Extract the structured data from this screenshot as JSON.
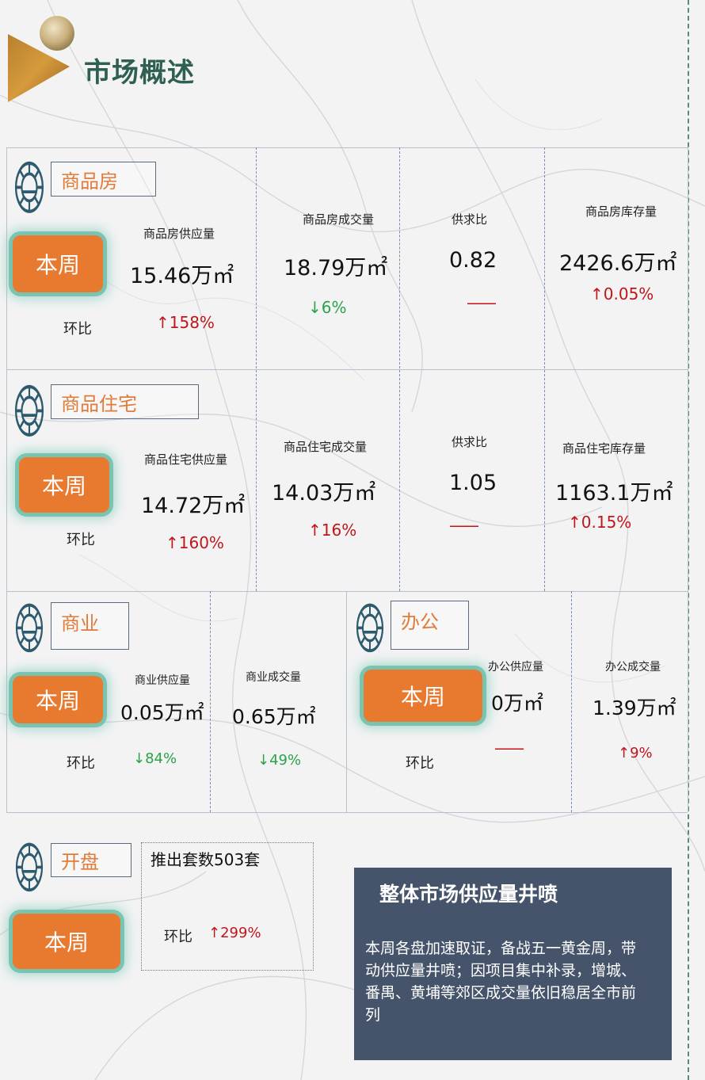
{
  "header": {
    "title": "市场概述"
  },
  "colors": {
    "accent": "#e87a30",
    "teal": "#2e5f52",
    "up": "#c0161b",
    "down": "#2aa34a",
    "summary_bg": "#45546a"
  },
  "common": {
    "this_week": "本周",
    "mom": "环比",
    "na": "——"
  },
  "commodity": {
    "name": "商品房",
    "supply_label": "商品房供应量",
    "supply_value": "15.46万㎡",
    "supply_change": "↑158%",
    "deal_label": "商品房成交量",
    "deal_value": "18.79万㎡",
    "deal_change": "↓6%",
    "ratio_label": "供求比",
    "ratio_value": "0.82",
    "stock_label": "商品房库存量",
    "stock_value": "2426.6万㎡",
    "stock_change": "↑0.05%"
  },
  "residential": {
    "name": "商品住宅",
    "supply_label": "商品住宅供应量",
    "supply_value": "14.72万㎡",
    "supply_change": "↑160%",
    "deal_label": "商品住宅成交量",
    "deal_value": "14.03万㎡",
    "deal_change": "↑16%",
    "ratio_label": "供求比",
    "ratio_value": "1.05",
    "stock_label": "商品住宅库存量",
    "stock_value": "1163.1万㎡",
    "stock_change": "↑0.15%"
  },
  "business": {
    "name": "商业",
    "supply_label": "商业供应量",
    "supply_value": "0.05万㎡",
    "supply_change": "↓84%",
    "deal_label": "商业成交量",
    "deal_value": "0.65万㎡",
    "deal_change": "↓49%"
  },
  "office": {
    "name": "办公",
    "supply_label": "办公供应量",
    "supply_value": "0万㎡",
    "deal_label": "办公成交量",
    "deal_value": "1.39万㎡",
    "deal_change": "↑9%"
  },
  "opening": {
    "name": "开盘",
    "units_text": "推出套数503套",
    "mom_change": "↑299%"
  },
  "summary": {
    "title": "整体市场供应量井喷",
    "body": "本周各盘加速取证，备战五一黄金周，带动供应量井喷；因项目集中补录，增城、番禺、黄埔等郊区成交量依旧稳居全市前列"
  }
}
